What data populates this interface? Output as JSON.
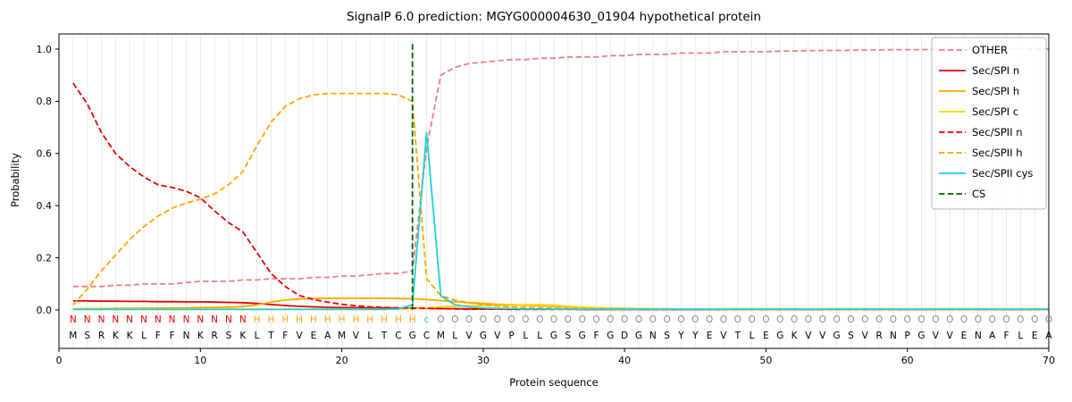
{
  "chart_data": {
    "type": "line",
    "title": "SignalP 6.0 prediction: MGYG000004630_01904 hypothetical protein",
    "xlabel": "Protein sequence",
    "ylabel": "Probability",
    "xlim": [
      0,
      70
    ],
    "ylim": [
      -0.15,
      1.06
    ],
    "xticks": [
      0,
      10,
      20,
      30,
      40,
      50,
      60,
      70
    ],
    "yticks": [
      0.0,
      0.2,
      0.4,
      0.6,
      0.8,
      1.0
    ],
    "grid": "vertical gridline at every residue position",
    "legend_position": "upper right",
    "sequence": "MSRKKLFFNKRSKLTFVEAMVLTCGCMLVGVPLLGSGFGDGNSYYEVTLEGKVVGSVRNPGVVENAFLEA",
    "region_labels": "NNNNNNNNNNNNNHHHHHHHHHHHHcOOOOOOOOOOOOOOOOOOOOOOOOOOOOOOOOOOOOOOOOOOOO",
    "region_colors": {
      "N": "#e60000",
      "H": "#ffa500",
      "c": "#1fd0d4",
      "O": "#8a8a8a"
    },
    "sequence_color": "#000000",
    "cs": {
      "label": "CS",
      "color": "#006400",
      "style": "dashed",
      "position": 25
    },
    "series": [
      {
        "name": "OTHER",
        "color": "#f08080",
        "style": "dashed",
        "values": [
          0.09,
          0.09,
          0.09,
          0.095,
          0.095,
          0.1,
          0.1,
          0.1,
          0.105,
          0.11,
          0.11,
          0.11,
          0.115,
          0.115,
          0.12,
          0.12,
          0.12,
          0.125,
          0.125,
          0.13,
          0.13,
          0.135,
          0.14,
          0.14,
          0.15,
          0.62,
          0.9,
          0.93,
          0.945,
          0.95,
          0.955,
          0.96,
          0.96,
          0.965,
          0.965,
          0.97,
          0.97,
          0.97,
          0.975,
          0.975,
          0.98,
          0.98,
          0.98,
          0.985,
          0.985,
          0.985,
          0.99,
          0.99,
          0.99,
          0.99,
          0.992,
          0.993,
          0.994,
          0.995,
          0.995,
          0.996,
          0.997,
          0.997,
          0.998,
          0.998,
          0.998,
          0.999,
          0.999,
          0.999,
          1.0,
          1.0,
          1.0,
          1.0,
          1.0,
          1.0
        ]
      },
      {
        "name": "Sec/SPI n",
        "color": "#e60000",
        "style": "solid",
        "values": [
          0.035,
          0.035,
          0.034,
          0.034,
          0.033,
          0.033,
          0.032,
          0.032,
          0.031,
          0.031,
          0.03,
          0.029,
          0.028,
          0.025,
          0.021,
          0.017,
          0.014,
          0.012,
          0.01,
          0.009,
          0.009,
          0.008,
          0.008,
          0.007,
          0.007,
          0.006,
          0.005,
          0.005,
          0.004,
          0.004,
          0.004,
          0.003,
          0.003,
          0.003,
          0.003,
          0.003,
          0.002,
          0.002,
          0.002,
          0.002,
          0.002,
          0.002,
          0.002,
          0.002,
          0.002,
          0.002,
          0.002,
          0.002,
          0.002,
          0.002,
          0.002,
          0.002,
          0.002,
          0.002,
          0.002,
          0.002,
          0.002,
          0.002,
          0.002,
          0.002,
          0.002,
          0.002,
          0.002,
          0.002,
          0.002,
          0.002,
          0.002,
          0.002,
          0.002,
          0.002
        ]
      },
      {
        "name": "Sec/SPI h",
        "color": "#ffa500",
        "style": "solid",
        "values": [
          0.004,
          0.005,
          0.005,
          0.006,
          0.006,
          0.007,
          0.007,
          0.008,
          0.008,
          0.009,
          0.01,
          0.011,
          0.013,
          0.02,
          0.03,
          0.038,
          0.042,
          0.044,
          0.045,
          0.045,
          0.045,
          0.045,
          0.045,
          0.044,
          0.043,
          0.04,
          0.036,
          0.032,
          0.028,
          0.025,
          0.022,
          0.02,
          0.018,
          0.016,
          0.014,
          0.012,
          0.01,
          0.008,
          0.007,
          0.006,
          0.005,
          0.004,
          0.004,
          0.003,
          0.003,
          0.003,
          0.003,
          0.003,
          0.003,
          0.003,
          0.003,
          0.003,
          0.003,
          0.003,
          0.003,
          0.003,
          0.003,
          0.003,
          0.003,
          0.003,
          0.003,
          0.003,
          0.003,
          0.003,
          0.003,
          0.003,
          0.003,
          0.003,
          0.003,
          0.003
        ]
      },
      {
        "name": "Sec/SPI c",
        "color": "#ffd700",
        "style": "solid",
        "values": [
          0.003,
          0.003,
          0.003,
          0.003,
          0.003,
          0.003,
          0.003,
          0.003,
          0.003,
          0.003,
          0.003,
          0.003,
          0.003,
          0.003,
          0.003,
          0.003,
          0.003,
          0.003,
          0.003,
          0.003,
          0.003,
          0.003,
          0.003,
          0.004,
          0.005,
          0.008,
          0.012,
          0.015,
          0.016,
          0.017,
          0.018,
          0.018,
          0.02,
          0.02,
          0.018,
          0.014,
          0.011,
          0.009,
          0.007,
          0.005,
          0.004,
          0.004,
          0.003,
          0.003,
          0.003,
          0.003,
          0.002,
          0.002,
          0.002,
          0.002,
          0.002,
          0.002,
          0.002,
          0.002,
          0.002,
          0.002,
          0.002,
          0.002,
          0.002,
          0.002,
          0.002,
          0.002,
          0.002,
          0.002,
          0.002,
          0.002,
          0.002,
          0.002,
          0.002,
          0.002
        ]
      },
      {
        "name": "Sec/SPII n",
        "color": "#e60000",
        "style": "dashed",
        "values": [
          0.87,
          0.79,
          0.68,
          0.6,
          0.55,
          0.51,
          0.48,
          0.47,
          0.455,
          0.43,
          0.38,
          0.335,
          0.3,
          0.22,
          0.14,
          0.09,
          0.055,
          0.04,
          0.03,
          0.022,
          0.016,
          0.012,
          0.01,
          0.008,
          0.007,
          0.006,
          0.005,
          0.004,
          0.003,
          0.003,
          0.003,
          0.002,
          0.002,
          0.002,
          0.002,
          0.002,
          0.002,
          0.002,
          0.002,
          0.002,
          0.002,
          0.002,
          0.002,
          0.002,
          0.002,
          0.002,
          0.002,
          0.002,
          0.002,
          0.002,
          0.002,
          0.002,
          0.002,
          0.002,
          0.002,
          0.002,
          0.002,
          0.002,
          0.002,
          0.002,
          0.002,
          0.002,
          0.002,
          0.002,
          0.002,
          0.002,
          0.002,
          0.002,
          0.002,
          0.002
        ]
      },
      {
        "name": "Sec/SPII h",
        "color": "#ffa500",
        "style": "dashed",
        "values": [
          0.02,
          0.08,
          0.15,
          0.21,
          0.27,
          0.32,
          0.36,
          0.39,
          0.41,
          0.425,
          0.445,
          0.48,
          0.53,
          0.63,
          0.72,
          0.78,
          0.81,
          0.825,
          0.83,
          0.83,
          0.83,
          0.83,
          0.83,
          0.825,
          0.8,
          0.12,
          0.055,
          0.038,
          0.028,
          0.02,
          0.015,
          0.012,
          0.01,
          0.008,
          0.007,
          0.006,
          0.005,
          0.004,
          0.004,
          0.003,
          0.003,
          0.003,
          0.003,
          0.003,
          0.003,
          0.002,
          0.002,
          0.002,
          0.002,
          0.002,
          0.002,
          0.002,
          0.002,
          0.002,
          0.002,
          0.002,
          0.002,
          0.002,
          0.002,
          0.002,
          0.002,
          0.002,
          0.002,
          0.002,
          0.002,
          0.002,
          0.002,
          0.002,
          0.002,
          0.002
        ]
      },
      {
        "name": "Sec/SPII cys",
        "color": "#1fd0d4",
        "style": "solid",
        "values": [
          0.002,
          0.002,
          0.002,
          0.002,
          0.002,
          0.002,
          0.002,
          0.002,
          0.002,
          0.002,
          0.002,
          0.002,
          0.002,
          0.002,
          0.002,
          0.002,
          0.002,
          0.002,
          0.002,
          0.002,
          0.002,
          0.002,
          0.002,
          0.004,
          0.02,
          0.68,
          0.055,
          0.02,
          0.012,
          0.008,
          0.006,
          0.005,
          0.004,
          0.004,
          0.003,
          0.003,
          0.003,
          0.003,
          0.003,
          0.003,
          0.003,
          0.003,
          0.003,
          0.003,
          0.003,
          0.003,
          0.003,
          0.003,
          0.003,
          0.003,
          0.003,
          0.003,
          0.003,
          0.003,
          0.003,
          0.003,
          0.003,
          0.003,
          0.003,
          0.003,
          0.003,
          0.003,
          0.003,
          0.003,
          0.003,
          0.003,
          0.003,
          0.003,
          0.003,
          0.003
        ]
      }
    ],
    "style_hints": {
      "grid_color": "#e4e4e4",
      "spine_color": "#000000",
      "background": "#ffffff",
      "line_width": 1.8
    }
  }
}
